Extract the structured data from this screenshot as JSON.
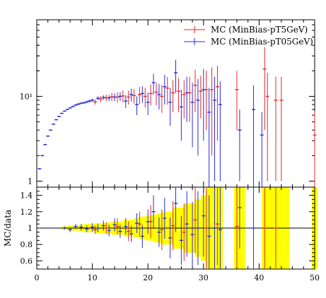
{
  "chart_data": [
    {
      "panel": "main",
      "type": "scatter",
      "title": "",
      "xlabel": "",
      "ylabel": "",
      "y_scale": "log",
      "xlim": [
        0,
        50
      ],
      "ylim": [
        0.85,
        80
      ],
      "y_ticks": [
        {
          "value": 1,
          "label": "1"
        },
        {
          "value": 10,
          "label": "10¹"
        }
      ],
      "legend_position": "top-right",
      "series": [
        {
          "name": "MC (MinBias-pT5GeV)",
          "color": "#e8262a",
          "points": [
            [
              10.5,
              8.6,
              0.6
            ],
            [
              11.5,
              9.3,
              0.8
            ],
            [
              12.5,
              9.6,
              0.9
            ],
            [
              13.5,
              9.9,
              1.1
            ],
            [
              14.5,
              9.8,
              1.4
            ],
            [
              15.5,
              10.1,
              1.6
            ],
            [
              16.5,
              9.8,
              1.8
            ],
            [
              17.5,
              10.2,
              2.0
            ],
            [
              18.5,
              10.5,
              2.4
            ],
            [
              19.5,
              10.0,
              2.6
            ],
            [
              20.5,
              10.8,
              3.0
            ],
            [
              21.5,
              11.2,
              3.4
            ],
            [
              22.5,
              10.0,
              3.6
            ],
            [
              23.5,
              12.5,
              4.5
            ],
            [
              24.5,
              11.0,
              4.5
            ],
            [
              25.5,
              11.5,
              5.0
            ],
            [
              26.5,
              10.5,
              5.0
            ],
            [
              27.5,
              11.0,
              6.0
            ],
            [
              28.5,
              13.5,
              7.0
            ],
            [
              29.5,
              11.5,
              6.0
            ],
            [
              30.5,
              12.0,
              8.0
            ],
            [
              31.5,
              12.0,
              10.0
            ],
            [
              32.5,
              13.0,
              10.0
            ],
            [
              36.0,
              12.0,
              8.0
            ],
            [
              41.0,
              21.0,
              17.0
            ],
            [
              41.5,
              10.0,
              9.0
            ],
            [
              43.0,
              9.0,
              8.0
            ],
            [
              44.0,
              9.0,
              8.0
            ],
            [
              50.0,
              3.5,
              3.2
            ]
          ]
        },
        {
          "name": "MC (MinBias-pT05GeV)",
          "color": "#2b2bd9",
          "points": [
            [
              0.5,
              1.4,
              0.03
            ],
            [
              1.0,
              2.0,
              0.04
            ],
            [
              1.5,
              2.7,
              0.05
            ],
            [
              2.0,
              3.4,
              0.06
            ],
            [
              2.5,
              4.0,
              0.07
            ],
            [
              3.0,
              4.7,
              0.08
            ],
            [
              3.5,
              5.3,
              0.09
            ],
            [
              4.0,
              5.8,
              0.1
            ],
            [
              4.5,
              6.3,
              0.1
            ],
            [
              5.0,
              6.7,
              0.12
            ],
            [
              5.5,
              7.0,
              0.13
            ],
            [
              6.0,
              7.3,
              0.15
            ],
            [
              6.5,
              7.6,
              0.17
            ],
            [
              7.0,
              7.9,
              0.2
            ],
            [
              7.5,
              8.1,
              0.22
            ],
            [
              8.0,
              8.3,
              0.25
            ],
            [
              8.5,
              8.4,
              0.28
            ],
            [
              9.0,
              8.6,
              0.3
            ],
            [
              9.5,
              8.8,
              0.35
            ],
            [
              10.0,
              9.0,
              0.4
            ],
            [
              11.0,
              9.5,
              0.5
            ],
            [
              12.0,
              9.7,
              0.6
            ],
            [
              13.0,
              9.6,
              0.8
            ],
            [
              14.0,
              9.8,
              1.0
            ],
            [
              15.0,
              10.0,
              1.2
            ],
            [
              16.0,
              8.8,
              1.5
            ],
            [
              17.0,
              10.5,
              1.8
            ],
            [
              18.0,
              8.0,
              2.0
            ],
            [
              19.0,
              10.8,
              2.4
            ],
            [
              20.0,
              8.5,
              2.5
            ],
            [
              21.0,
              14.5,
              4.0
            ],
            [
              22.0,
              10.5,
              3.5
            ],
            [
              23.0,
              13.0,
              5.0
            ],
            [
              24.0,
              8.5,
              4.0
            ],
            [
              25.0,
              19.0,
              8.0
            ],
            [
              26.0,
              7.5,
              4.5
            ],
            [
              27.0,
              11.0,
              6.0
            ],
            [
              28.0,
              8.5,
              6.0
            ],
            [
              29.0,
              9.0,
              7.0
            ],
            [
              30.0,
              12.0,
              9.0
            ],
            [
              31.0,
              6.5,
              6.0
            ],
            [
              32.0,
              9.0,
              8.0
            ],
            [
              33.0,
              8.0,
              7.0
            ],
            [
              36.5,
              4.0,
              3.0
            ],
            [
              39.0,
              7.0,
              6.5
            ],
            [
              40.5,
              3.5,
              3.0
            ]
          ]
        }
      ]
    },
    {
      "panel": "ratio",
      "type": "scatter",
      "title": "",
      "xlabel": "",
      "ylabel": "MC/data",
      "xlim": [
        0,
        50
      ],
      "ylim": [
        0.5,
        1.5
      ],
      "x_ticks": [
        {
          "value": 0,
          "label": "0"
        },
        {
          "value": 10,
          "label": "10"
        },
        {
          "value": 20,
          "label": "20"
        },
        {
          "value": 30,
          "label": "30"
        },
        {
          "value": 40,
          "label": "40"
        },
        {
          "value": 50,
          "label": "50"
        }
      ],
      "y_ticks": [
        {
          "value": 0.6,
          "label": "0.6"
        },
        {
          "value": 0.8,
          "label": "0.8"
        },
        {
          "value": 1.0,
          "label": "1"
        },
        {
          "value": 1.2,
          "label": "1.2"
        },
        {
          "value": 1.4,
          "label": "1.4"
        }
      ],
      "reference_line": 1.0,
      "band_color": "#ffff00",
      "data_uncertainty_band": [
        [
          5,
          0.02
        ],
        [
          6,
          0.03
        ],
        [
          7,
          0.03
        ],
        [
          8,
          0.04
        ],
        [
          9,
          0.05
        ],
        [
          10,
          0.05
        ],
        [
          11,
          0.06
        ],
        [
          12,
          0.06
        ],
        [
          13,
          0.07
        ],
        [
          14,
          0.08
        ],
        [
          15,
          0.08
        ],
        [
          16,
          0.1
        ],
        [
          17,
          0.1
        ],
        [
          18,
          0.12
        ],
        [
          19,
          0.14
        ],
        [
          20,
          0.15
        ],
        [
          21,
          0.16
        ],
        [
          22,
          0.18
        ],
        [
          23,
          0.2
        ],
        [
          24,
          0.2
        ],
        [
          25,
          0.25
        ],
        [
          26,
          0.25
        ],
        [
          27,
          0.3
        ],
        [
          28,
          0.3
        ],
        [
          29,
          0.35
        ],
        [
          30,
          0.4
        ],
        [
          31,
          0.6
        ],
        [
          32,
          0.6
        ],
        [
          33,
          0.6
        ],
        [
          36,
          0.6
        ],
        [
          37,
          0.6
        ],
        [
          41,
          0.6
        ],
        [
          42,
          0.6
        ],
        [
          43,
          0.6
        ],
        [
          44,
          0.6
        ],
        [
          45,
          0.6
        ],
        [
          50,
          0.6
        ]
      ],
      "series": [
        {
          "name": "MC (MinBias-pT5GeV)",
          "color": "#e8262a",
          "points": [
            [
              10.5,
              0.98,
              0.05
            ],
            [
              12.5,
              1.0,
              0.07
            ],
            [
              14.5,
              1.02,
              0.1
            ],
            [
              16.5,
              0.96,
              0.12
            ],
            [
              18.5,
              1.05,
              0.15
            ],
            [
              20.5,
              1.08,
              0.2
            ],
            [
              22.5,
              0.98,
              0.25
            ],
            [
              24.5,
              1.03,
              0.3
            ],
            [
              26.5,
              0.95,
              0.35
            ],
            [
              28.5,
              1.1,
              0.4
            ],
            [
              30.5,
              1.0,
              0.5
            ],
            [
              32.5,
              1.05,
              0.5
            ],
            [
              36.0,
              1.02,
              0.5
            ],
            [
              41.0,
              1.0,
              0.6
            ],
            [
              43.0,
              1.0,
              0.6
            ]
          ]
        },
        {
          "name": "MC (MinBias-pT05GeV)",
          "color": "#2b2bd9",
          "points": [
            [
              5.0,
              1.0,
              0.02
            ],
            [
              6.0,
              0.98,
              0.03
            ],
            [
              7.0,
              1.02,
              0.03
            ],
            [
              8.0,
              1.01,
              0.04
            ],
            [
              9.0,
              0.99,
              0.04
            ],
            [
              10.0,
              1.01,
              0.05
            ],
            [
              11.0,
              1.0,
              0.05
            ],
            [
              12.0,
              1.03,
              0.06
            ],
            [
              13.0,
              0.97,
              0.07
            ],
            [
              14.0,
              1.04,
              0.08
            ],
            [
              15.0,
              0.96,
              0.08
            ],
            [
              16.0,
              1.02,
              0.1
            ],
            [
              17.0,
              0.93,
              0.1
            ],
            [
              18.0,
              1.06,
              0.12
            ],
            [
              19.0,
              0.9,
              0.14
            ],
            [
              20.0,
              1.08,
              0.15
            ],
            [
              21.0,
              1.2,
              0.2
            ],
            [
              22.0,
              0.95,
              0.18
            ],
            [
              23.0,
              1.12,
              0.25
            ],
            [
              24.0,
              0.88,
              0.25
            ],
            [
              25.0,
              1.3,
              0.35
            ],
            [
              26.0,
              0.85,
              0.3
            ],
            [
              27.0,
              1.05,
              0.4
            ],
            [
              28.0,
              0.92,
              0.4
            ],
            [
              29.0,
              1.0,
              0.45
            ],
            [
              30.0,
              1.15,
              0.5
            ],
            [
              31.0,
              0.9,
              0.5
            ],
            [
              32.0,
              1.0,
              0.55
            ],
            [
              33.0,
              0.98,
              0.55
            ],
            [
              36.5,
              1.25,
              0.5
            ],
            [
              39.0,
              1.0,
              0.6
            ]
          ]
        }
      ]
    }
  ]
}
